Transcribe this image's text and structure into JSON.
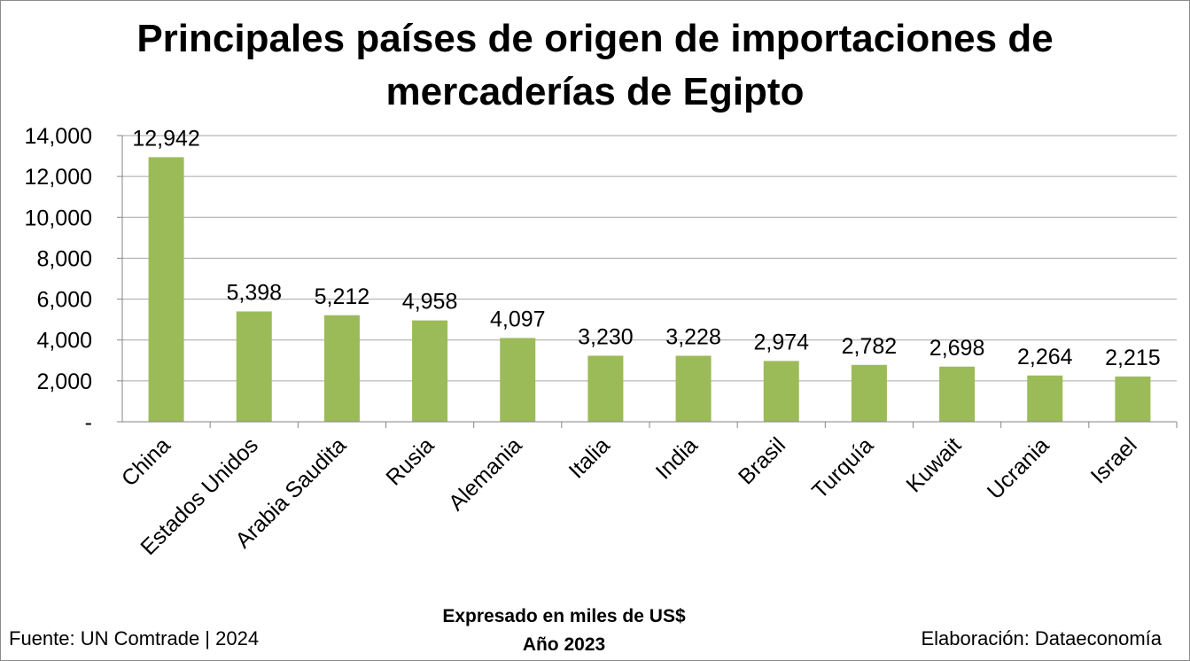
{
  "chart_data": {
    "type": "bar",
    "title": "Principales países de origen de importaciones de mercaderías de Egipto",
    "title_lines": [
      "Principales países de origen de importaciones de",
      "mercaderías de Egipto"
    ],
    "categories": [
      "China",
      "Estados Unidos",
      "Arabia Saudita",
      "Rusia",
      "Alemania",
      "Italia",
      "India",
      "Brasil",
      "Turquía",
      "Kuwait",
      "Ucrania",
      "Israel"
    ],
    "values": [
      12942,
      5398,
      5212,
      4958,
      4097,
      3230,
      3228,
      2974,
      2782,
      2698,
      2264,
      2215
    ],
    "data_labels": [
      "12,942",
      "5,398",
      "5,212",
      "4,958",
      "4,097",
      "3,230",
      "3,228",
      "2,974",
      "2,782",
      "2,698",
      "2,264",
      "2,215"
    ],
    "ylim": [
      0,
      14000
    ],
    "yticks": [
      0,
      2000,
      4000,
      6000,
      8000,
      10000,
      12000,
      14000
    ],
    "ytick_labels": [
      "-",
      "2,000",
      "4,000",
      "6,000",
      "8,000",
      "10,000",
      "12,000",
      "14,000"
    ],
    "xlabel": "",
    "ylabel": "",
    "grid": true,
    "legend": "none",
    "bar_color": "#9bbb59",
    "grid_color": "#a6a6a6"
  },
  "footer": {
    "source": "Fuente: UN Comtrade | 2024",
    "unit_line1": "Expresado en miles de US$",
    "unit_line2": "Año 2023",
    "credit": "Elaboración: Dataeconomía"
  }
}
